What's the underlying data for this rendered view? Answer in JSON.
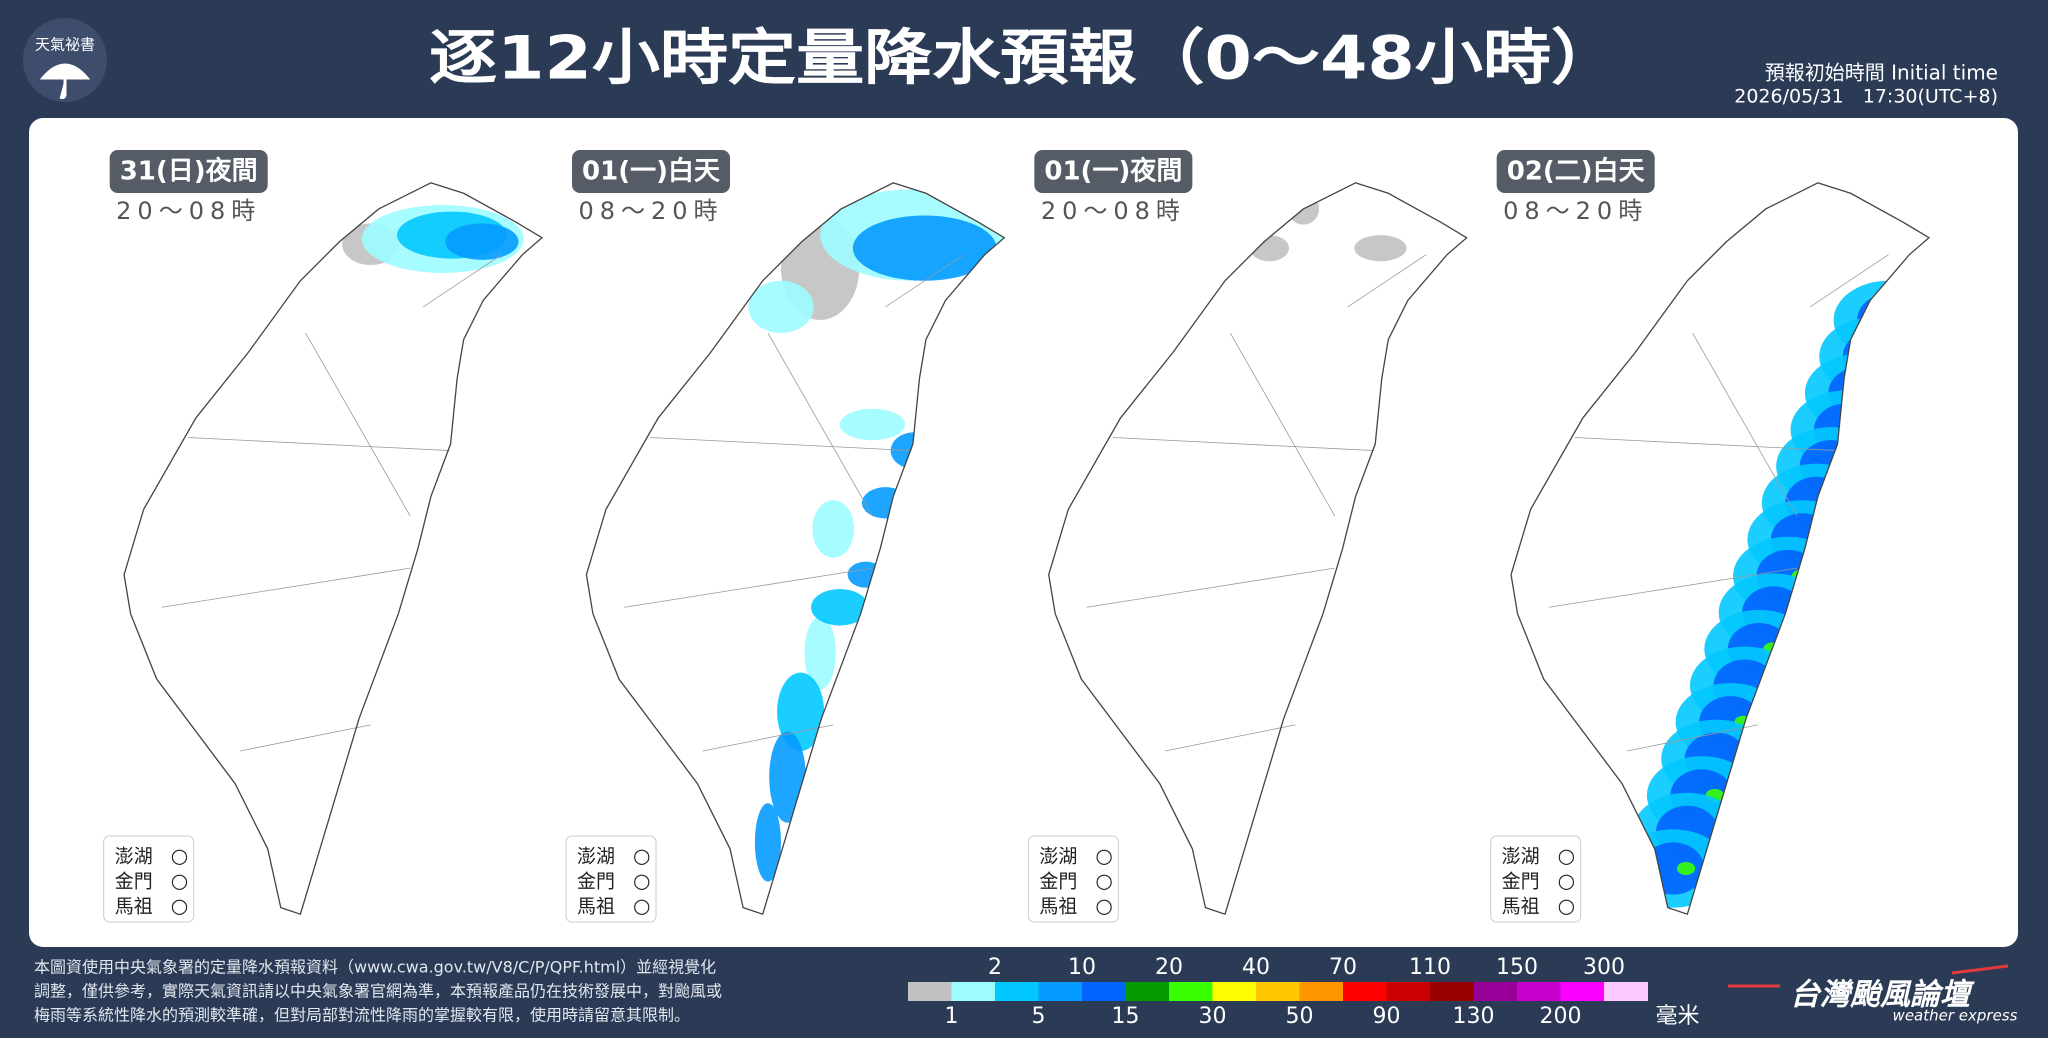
{
  "logo": "天氣祕書",
  "title": "逐12小時定量降水預報（0～48小時）",
  "initial_time": {
    "label": "預報初始時間 Initial time",
    "value": "2026/05/31　17:30(UTC+8)"
  },
  "panels": [
    {
      "label": "31(日)夜間",
      "hours": "20～08時",
      "islands": [
        {
          "name": "澎湖",
          "status": "○"
        },
        {
          "name": "金門",
          "status": "○"
        },
        {
          "name": "馬祖",
          "status": "○"
        }
      ]
    },
    {
      "label": "01(一)白天",
      "hours": "08～20時",
      "islands": [
        {
          "name": "澎湖",
          "status": "○"
        },
        {
          "name": "金門",
          "status": "○"
        },
        {
          "name": "馬祖",
          "status": "○"
        }
      ]
    },
    {
      "label": "01(一)夜間",
      "hours": "20～08時",
      "islands": [
        {
          "name": "澎湖",
          "status": "○"
        },
        {
          "name": "金門",
          "status": "○"
        },
        {
          "name": "馬祖",
          "status": "○"
        }
      ]
    },
    {
      "label": "02(二)白天",
      "hours": "08～20時",
      "islands": [
        {
          "name": "澎湖",
          "status": "○"
        },
        {
          "name": "金門",
          "status": "○"
        },
        {
          "name": "馬祖",
          "status": "○"
        }
      ]
    }
  ],
  "note": [
    "本圖資使用中央氣象署的定量降水預報資料（www.cwa.gov.tw/V8/C/P/QPF.html）並經視覺化",
    "調整，僅供參考，實際天氣資訊請以中央氣象署官網為準，本預報產品仍在技術發展中，對颱風或",
    "梅雨等系統性降水的預測較準確，但對局部對流性降雨的掌握較有限，使用時請留意其限制。"
  ],
  "legend": {
    "thresholds": [
      1,
      2,
      5,
      10,
      15,
      20,
      30,
      40,
      50,
      70,
      90,
      110,
      130,
      150,
      200,
      300
    ],
    "colors": [
      "#c1c1c1",
      "#9cfcff",
      "#03c8ff",
      "#059bff",
      "#0363ff",
      "#059902",
      "#39ff03",
      "#fffb03",
      "#ffc800",
      "#ff9500",
      "#ff0000",
      "#cc0000",
      "#990000",
      "#960099",
      "#c900cc",
      "#fb00ff",
      "#fdc9ff"
    ],
    "unit": "毫米"
  },
  "brand": {
    "name": "台灣颱風論壇",
    "tagline": "weather express"
  }
}
